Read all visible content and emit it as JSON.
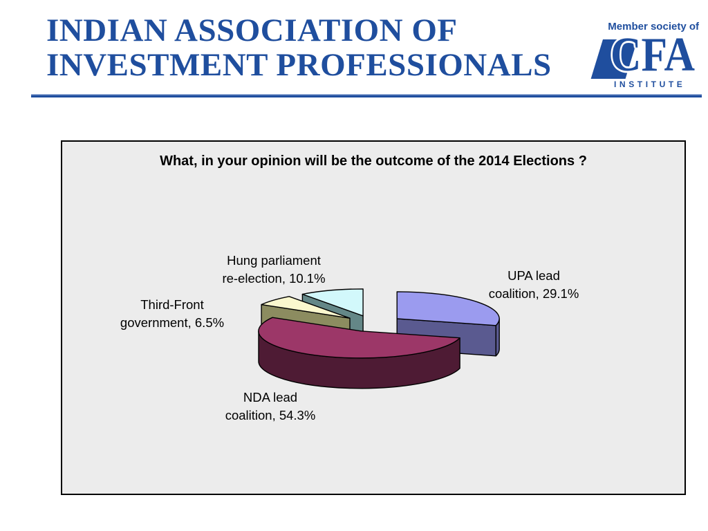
{
  "header": {
    "org_name_line1": "INDIAN ASSOCIATION OF",
    "org_name_line2": "INVESTMENT PROFESSIONALS",
    "member_society_text": "Member society of",
    "cfa_logo": {
      "c": "C",
      "fa": "FA",
      "institute": "INSTITUTE"
    },
    "brand_color": "#1F4E9E"
  },
  "chart_data": {
    "type": "pie",
    "style": "3d-exploded",
    "title": "What, in your opinion will be the outcome of the 2014 Elections ?",
    "background_color": "#ECECEC",
    "direction": "clockwise",
    "start_angle_deg": 0,
    "legend": "none",
    "slices": [
      {
        "label": "UPA lead coalition",
        "value_pct": 29.1,
        "label_lines": [
          "UPA lead",
          "coalition, 29.1%"
        ],
        "top_color": "#9B9BEF",
        "side_color": "#5A5A90"
      },
      {
        "label": "NDA lead coalition",
        "value_pct": 54.3,
        "label_lines": [
          "NDA lead",
          "coalition, 54.3%"
        ],
        "top_color": "#9C3768",
        "side_color": "#4E1B34"
      },
      {
        "label": "Third-Front government",
        "value_pct": 6.5,
        "label_lines": [
          "Third-Front",
          "government, 6.5%"
        ],
        "top_color": "#FBF8CE",
        "side_color": "#8C8C60"
      },
      {
        "label": "Hung parliament re-election",
        "value_pct": 10.1,
        "label_lines": [
          "Hung parliament",
          "re-election, 10.1%"
        ],
        "top_color": "#D2F8FB",
        "side_color": "#648787"
      }
    ]
  }
}
